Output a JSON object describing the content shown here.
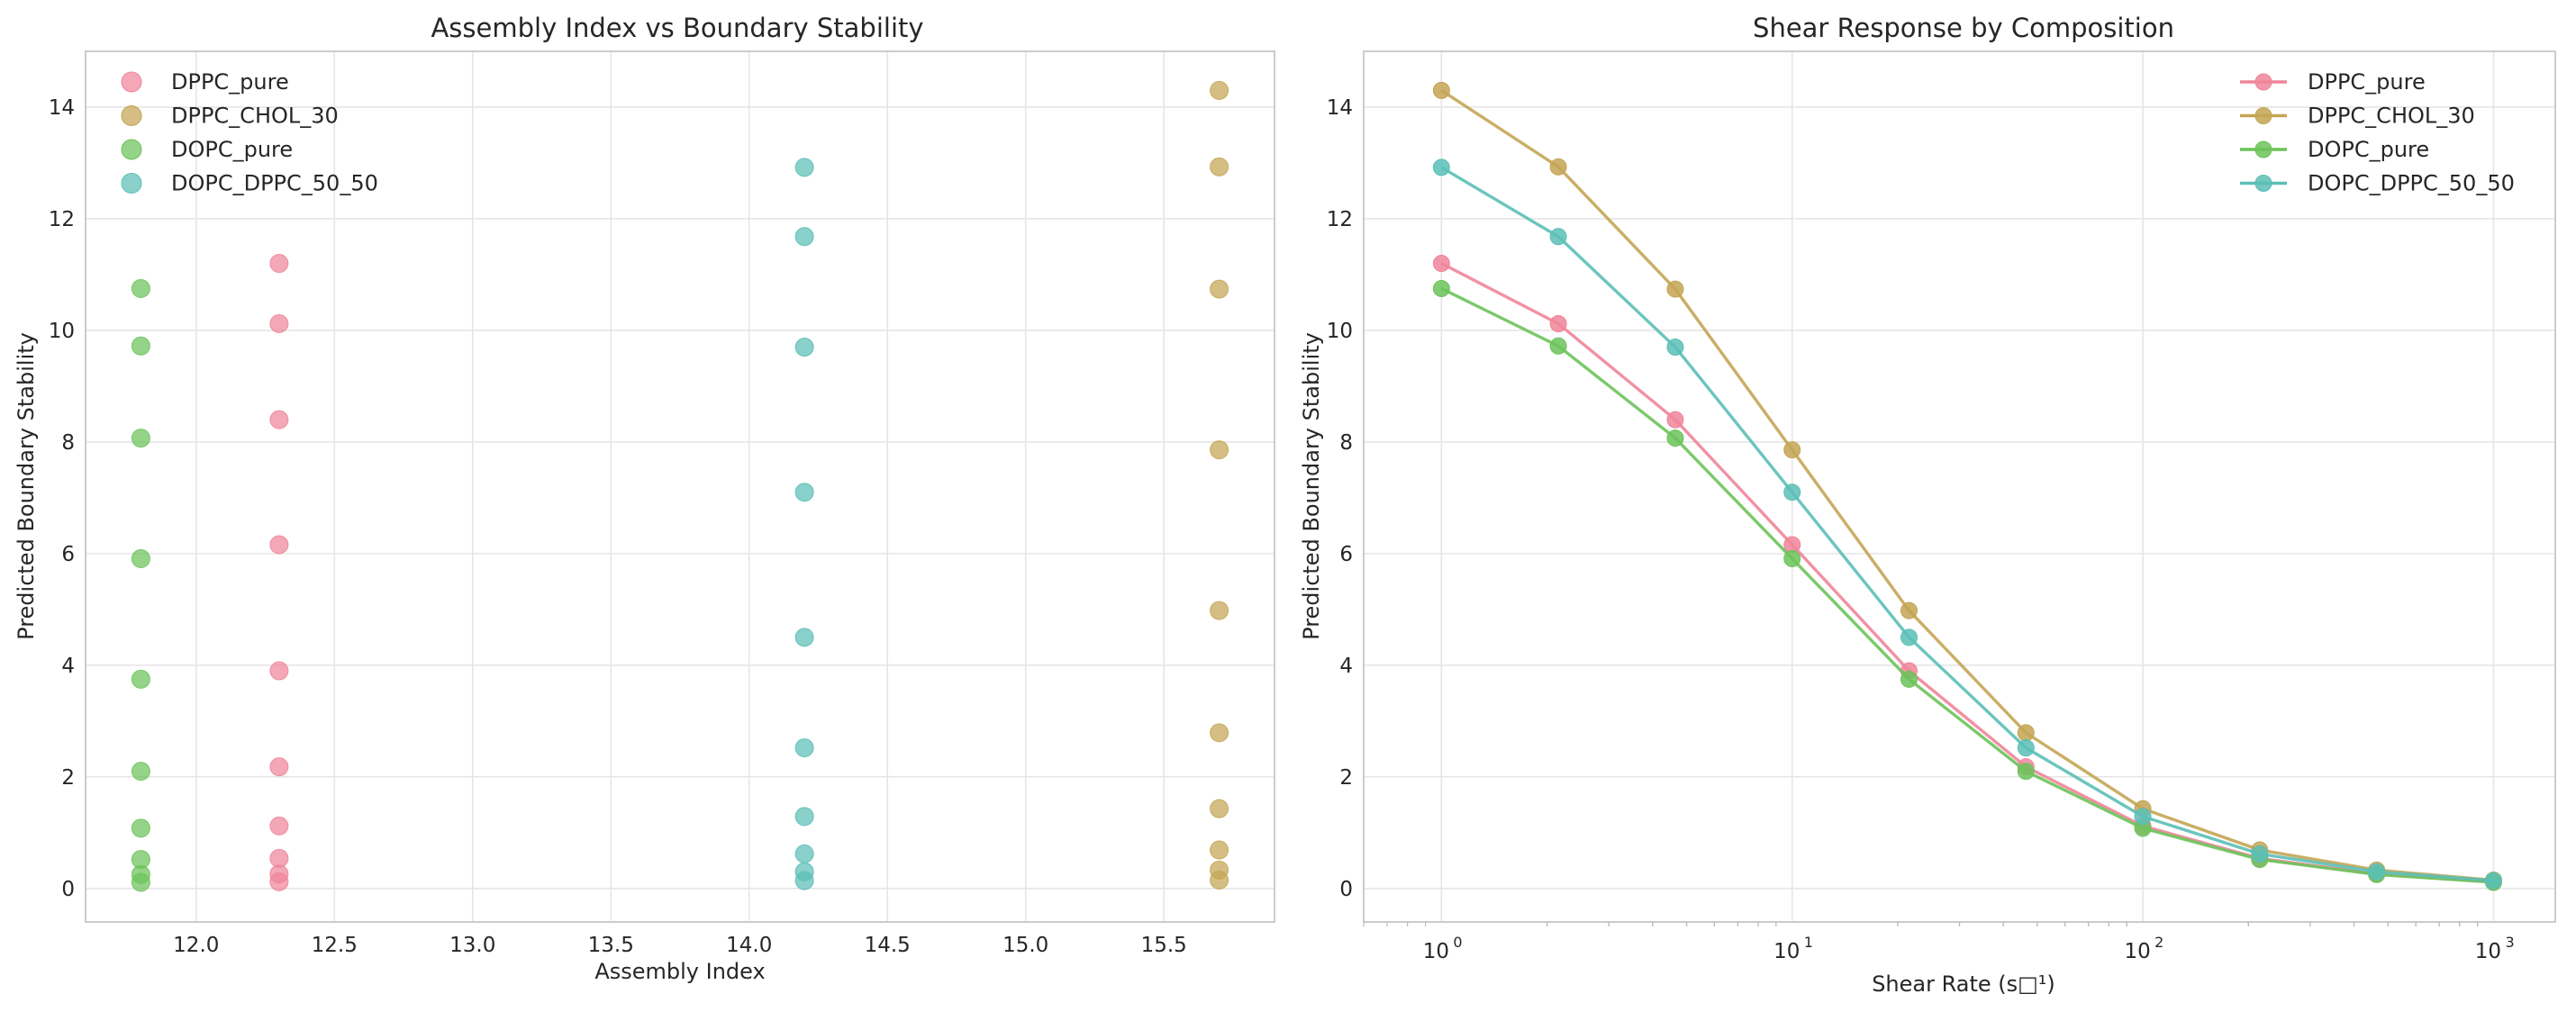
{
  "colors": {
    "DPPC_pure": "#f0859a",
    "DPPC_CHOL_30": "#c4a554",
    "DOPC_pure": "#6cc35a",
    "DOPC_DPPC_50_50": "#5bbfb6"
  },
  "chart_data": [
    {
      "type": "scatter",
      "title": "Assembly Index vs Boundary Stability",
      "xlabel": "Assembly Index",
      "ylabel": "Predicted Boundary Stability",
      "xlim": [
        11.6,
        15.9
      ],
      "ylim": [
        -0.6,
        15.0
      ],
      "xticks": [
        12.0,
        12.5,
        13.0,
        13.5,
        14.0,
        14.5,
        15.0,
        15.5
      ],
      "xtick_labels": [
        "12.0",
        "12.5",
        "13.0",
        "13.5",
        "14.0",
        "14.5",
        "15.0",
        "15.5"
      ],
      "yticks": [
        0,
        2,
        4,
        6,
        8,
        10,
        12,
        14
      ],
      "ytick_labels": [
        "0",
        "2",
        "4",
        "6",
        "8",
        "10",
        "12",
        "14"
      ],
      "grid": true,
      "legend_position": "top-left",
      "series": [
        {
          "name": "DPPC_pure",
          "x": [
            12.3,
            12.3,
            12.3,
            12.3,
            12.3,
            12.3,
            12.3,
            12.3,
            12.3,
            12.3
          ],
          "y": [
            11.2,
            10.12,
            8.4,
            6.16,
            3.9,
            2.18,
            1.12,
            0.54,
            0.26,
            0.12
          ]
        },
        {
          "name": "DPPC_CHOL_30",
          "x": [
            15.7,
            15.7,
            15.7,
            15.7,
            15.7,
            15.7,
            15.7,
            15.7,
            15.7,
            15.7
          ],
          "y": [
            14.3,
            12.93,
            10.74,
            7.86,
            4.98,
            2.79,
            1.43,
            0.69,
            0.33,
            0.15
          ]
        },
        {
          "name": "DOPC_pure",
          "x": [
            11.8,
            11.8,
            11.8,
            11.8,
            11.8,
            11.8,
            11.8,
            11.8,
            11.8,
            11.8
          ],
          "y": [
            10.75,
            9.72,
            8.07,
            5.91,
            3.75,
            2.1,
            1.08,
            0.52,
            0.25,
            0.11
          ]
        },
        {
          "name": "DOPC_DPPC_50_50",
          "x": [
            14.2,
            14.2,
            14.2,
            14.2,
            14.2,
            14.2,
            14.2,
            14.2,
            14.2,
            14.2
          ],
          "y": [
            12.92,
            11.68,
            9.7,
            7.1,
            4.5,
            2.52,
            1.29,
            0.62,
            0.3,
            0.14
          ]
        }
      ]
    },
    {
      "type": "line",
      "title": "Shear Response by Composition",
      "xlabel": "Shear Rate (s□¹)",
      "ylabel": "Predicted Boundary Stability",
      "xscale": "log",
      "xlim": [
        0.6,
        1500
      ],
      "ylim": [
        -0.6,
        15.0
      ],
      "xticks": [
        1,
        10,
        100,
        1000
      ],
      "xtick_labels": [
        {
          "base": "10",
          "exp": "0"
        },
        {
          "base": "10",
          "exp": "1"
        },
        {
          "base": "10",
          "exp": "2"
        },
        {
          "base": "10",
          "exp": "3"
        }
      ],
      "yticks": [
        0,
        2,
        4,
        6,
        8,
        10,
        12,
        14
      ],
      "ytick_labels": [
        "0",
        "2",
        "4",
        "6",
        "8",
        "10",
        "12",
        "14"
      ],
      "grid": true,
      "legend_position": "top-right",
      "x": [
        1,
        2.154,
        4.642,
        10,
        21.54,
        46.42,
        100,
        215.4,
        464.2,
        1000
      ],
      "series": [
        {
          "name": "DPPC_pure",
          "values": [
            11.2,
            10.12,
            8.4,
            6.16,
            3.9,
            2.18,
            1.12,
            0.54,
            0.26,
            0.12
          ]
        },
        {
          "name": "DPPC_CHOL_30",
          "values": [
            14.3,
            12.93,
            10.74,
            7.86,
            4.98,
            2.79,
            1.43,
            0.69,
            0.33,
            0.15
          ]
        },
        {
          "name": "DOPC_pure",
          "values": [
            10.75,
            9.72,
            8.07,
            5.91,
            3.75,
            2.1,
            1.08,
            0.52,
            0.25,
            0.11
          ]
        },
        {
          "name": "DOPC_DPPC_50_50",
          "values": [
            12.92,
            11.68,
            9.7,
            7.1,
            4.5,
            2.52,
            1.29,
            0.62,
            0.3,
            0.14
          ]
        }
      ]
    }
  ]
}
